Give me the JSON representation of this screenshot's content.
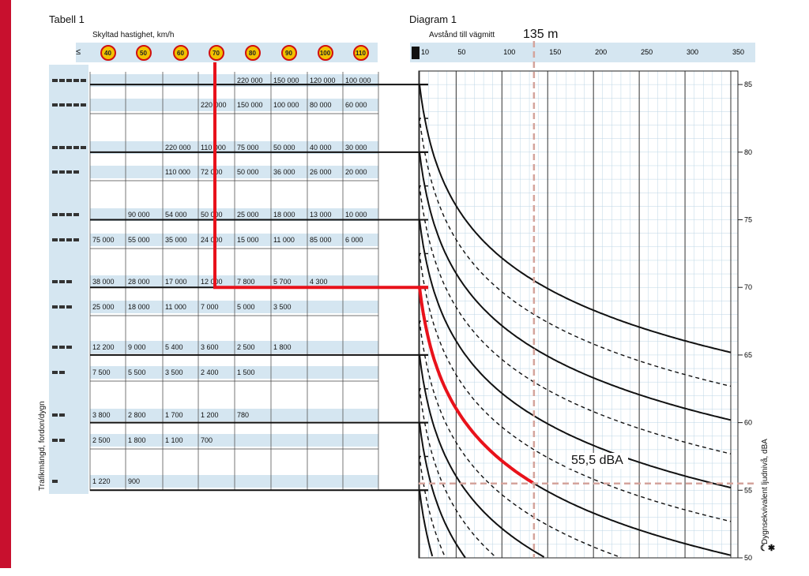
{
  "table": {
    "title": "Tabell 1",
    "speed_label": "Skyltad hastighet, km/h",
    "leq_symbol": "≤",
    "speeds": [
      "40",
      "50",
      "60",
      "70",
      "80",
      "90",
      "100",
      "110"
    ],
    "row_axis_label": "Trafikmängd, fordon/dygn",
    "rows": [
      [
        "",
        "",
        "",
        "",
        "220 000",
        "150 000",
        "120 000",
        "100 000"
      ],
      [
        "",
        "",
        "",
        "220 000",
        "150 000",
        "100 000",
        "80 000",
        "60 000"
      ],
      [
        "",
        "",
        "220 000",
        "110 000",
        "75 000",
        "50 000",
        "40 000",
        "30 000"
      ],
      [
        "",
        "",
        "110 000",
        "72 000",
        "50 000",
        "36 000",
        "26 000",
        "20 000"
      ],
      [
        "",
        "90 000",
        "54 000",
        "50 000",
        "25 000",
        "18 000",
        "13 000",
        "10 000"
      ],
      [
        "75 000",
        "55 000",
        "35 000",
        "24 000",
        "15 000",
        "11 000",
        "85 000",
        "6 000"
      ],
      [
        "38 000",
        "28 000",
        "17 000",
        "12 000",
        "7 800",
        "5 700",
        "4 300",
        ""
      ],
      [
        "25 000",
        "18 000",
        "11 000",
        "7 000",
        "5 000",
        "3 500",
        "",
        ""
      ],
      [
        "12 200",
        "9 000",
        "5 400",
        "3 600",
        "2 500",
        "1 800",
        "",
        ""
      ],
      [
        "7 500",
        "5 500",
        "3 500",
        "2 400",
        "1 500",
        "",
        "",
        ""
      ],
      [
        "3 800",
        "2 800",
        "1 700",
        "1 200",
        "780",
        "",
        "",
        ""
      ],
      [
        "2 500",
        "1 800",
        "1 100",
        "700",
        "",
        "",
        "",
        ""
      ],
      [
        "1 220",
        "900",
        "",
        "",
        "",
        "",
        "",
        ""
      ]
    ]
  },
  "chart_data": {
    "type": "line",
    "title": "Diagram 1",
    "xlabel": "Avstånd till vägmitt",
    "ylabel": "Dygnsekvivalent ljudnivå, dBA",
    "x_ticks": [
      10,
      50,
      100,
      150,
      200,
      250,
      300,
      350
    ],
    "y_ticks": [
      50,
      55,
      60,
      65,
      70,
      75,
      80,
      85
    ],
    "xlim": [
      0,
      360
    ],
    "ylim": [
      50,
      86
    ],
    "grid": true,
    "curves_start_db": [
      85,
      82.5,
      80,
      77.5,
      75,
      72.5,
      70,
      67.5,
      65,
      62.5,
      60,
      57.5,
      55
    ],
    "curve_drop_db_at_135m": 14.5,
    "highlight": {
      "distance_m": 135,
      "level_dba": 55.5,
      "distance_label": "135 m",
      "level_label": "55,5 dBA",
      "speed_column": "70",
      "traffic_row_index": 6
    }
  },
  "colors": {
    "accent_red": "#e8121b",
    "band_blue": "#d5e6f1",
    "grid_blue": "#bcd6e6",
    "dashed_guide": "#d4a49c"
  }
}
